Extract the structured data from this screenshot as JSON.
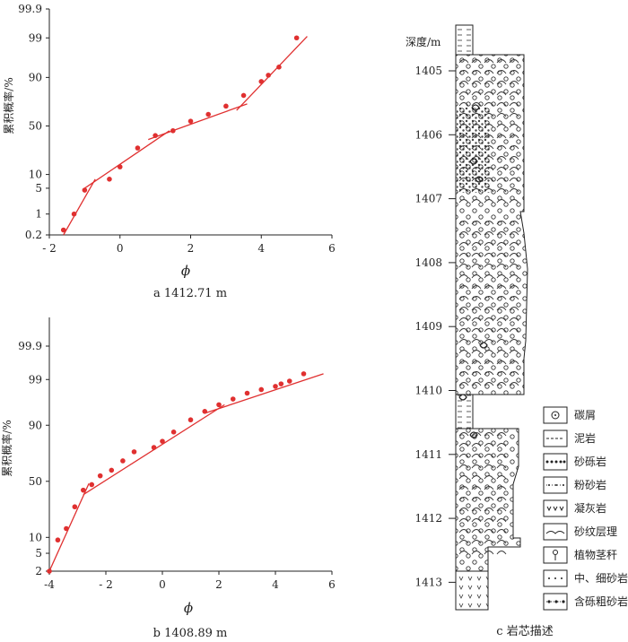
{
  "figure": {
    "panel_a": {
      "caption": "a  1412.71 m",
      "ylabel": "累积概率/%",
      "xlabel": "ϕ",
      "yticks": [
        "99.9",
        "99",
        "90",
        "50",
        "10",
        "5",
        "1",
        "0.2"
      ],
      "xticks": [
        "- 2",
        "0",
        "2",
        "4",
        "6"
      ]
    },
    "panel_b": {
      "caption": "b  1408.89 m",
      "ylabel": "累积概率/%",
      "xlabel": "ϕ",
      "yticks": [
        "99.9",
        "99",
        "90",
        "50",
        "10",
        "5",
        "2"
      ],
      "xticks": [
        "-4",
        "- 2",
        "0",
        "2",
        "4",
        "6"
      ]
    },
    "panel_c": {
      "caption": "c  岩芯描述",
      "depth_label": "深度/m",
      "depths": [
        "1405",
        "1406",
        "1407",
        "1408",
        "1409",
        "1410",
        "1411",
        "1412",
        "1413"
      ]
    },
    "legend": [
      {
        "icon": "carbon-debris-icon",
        "label": "碳屑"
      },
      {
        "icon": "mudstone-icon",
        "label": "泥岩"
      },
      {
        "icon": "glutenite-icon",
        "label": "砂砾岩"
      },
      {
        "icon": "siltstone-icon",
        "label": "粉砂岩"
      },
      {
        "icon": "tuff-icon",
        "label": "凝灰岩"
      },
      {
        "icon": "ripple-lamination-icon",
        "label": "砂纹层理"
      },
      {
        "icon": "plant-stem-icon",
        "label": "植物茎秆"
      },
      {
        "icon": "medium-fine-sandstone-icon",
        "label": "中、细砂岩"
      },
      {
        "icon": "pebbly-coarse-sandstone-icon",
        "label": "含砾粗砂岩"
      }
    ]
  },
  "chart_data": [
    {
      "type": "scatter",
      "title": "a  1412.71 m",
      "xlabel": "ϕ",
      "ylabel": "累积概率/%",
      "xlim": [
        -2,
        6
      ],
      "y_scale": "probability",
      "y_ticks": [
        0.2,
        1,
        5,
        10,
        50,
        90,
        99,
        99.9
      ],
      "points": {
        "x": [
          -1.6,
          -1.3,
          -1.0,
          -0.3,
          0.0,
          0.5,
          1.0,
          1.5,
          2.0,
          2.5,
          3.0,
          3.5,
          4.0,
          4.2,
          4.5,
          5.0
        ],
        "y": [
          0.3,
          1.0,
          4.5,
          8,
          14,
          28,
          40,
          45,
          55,
          62,
          70,
          79,
          88,
          91,
          94,
          99
        ]
      },
      "fit_segments": [
        {
          "x": [
            -1.6,
            -0.7
          ],
          "y": [
            0.2,
            8
          ]
        },
        {
          "x": [
            -1.0,
            1.4
          ],
          "y": [
            5,
            45
          ]
        },
        {
          "x": [
            0.8,
            3.6
          ],
          "y": [
            36,
            72
          ]
        },
        {
          "x": [
            3.3,
            5.3
          ],
          "y": [
            66,
            99.1
          ]
        }
      ],
      "color": "#e03030"
    },
    {
      "type": "scatter",
      "title": "b  1408.89 m",
      "xlabel": "ϕ",
      "ylabel": "累积概率/%",
      "xlim": [
        -4,
        6
      ],
      "y_scale": "probability",
      "y_ticks": [
        2,
        5,
        10,
        50,
        90,
        99,
        99.9
      ],
      "points": {
        "x": [
          -4.0,
          -3.7,
          -3.4,
          -3.1,
          -2.8,
          -2.5,
          -2.2,
          -1.8,
          -1.4,
          -1.0,
          -0.3,
          0.0,
          0.4,
          1.0,
          1.5,
          2.0,
          2.5,
          3.0,
          3.5,
          4.0,
          4.2,
          4.5,
          5.0
        ],
        "y": [
          2.0,
          9,
          14,
          28,
          42,
          47,
          55,
          60,
          68,
          75,
          78,
          82,
          87,
          92,
          94.5,
          96,
          97,
          97.8,
          98.2,
          98.5,
          98.7,
          98.9,
          99.3
        ]
      },
      "fit_segments": [
        {
          "x": [
            -4.0,
            -2.6
          ],
          "y": [
            2.0,
            48
          ]
        },
        {
          "x": [
            -2.8,
            2.2
          ],
          "y": [
            38,
            96
          ]
        },
        {
          "x": [
            1.5,
            5.7
          ],
          "y": [
            94,
            99.3
          ]
        }
      ],
      "color": "#e03030"
    }
  ]
}
